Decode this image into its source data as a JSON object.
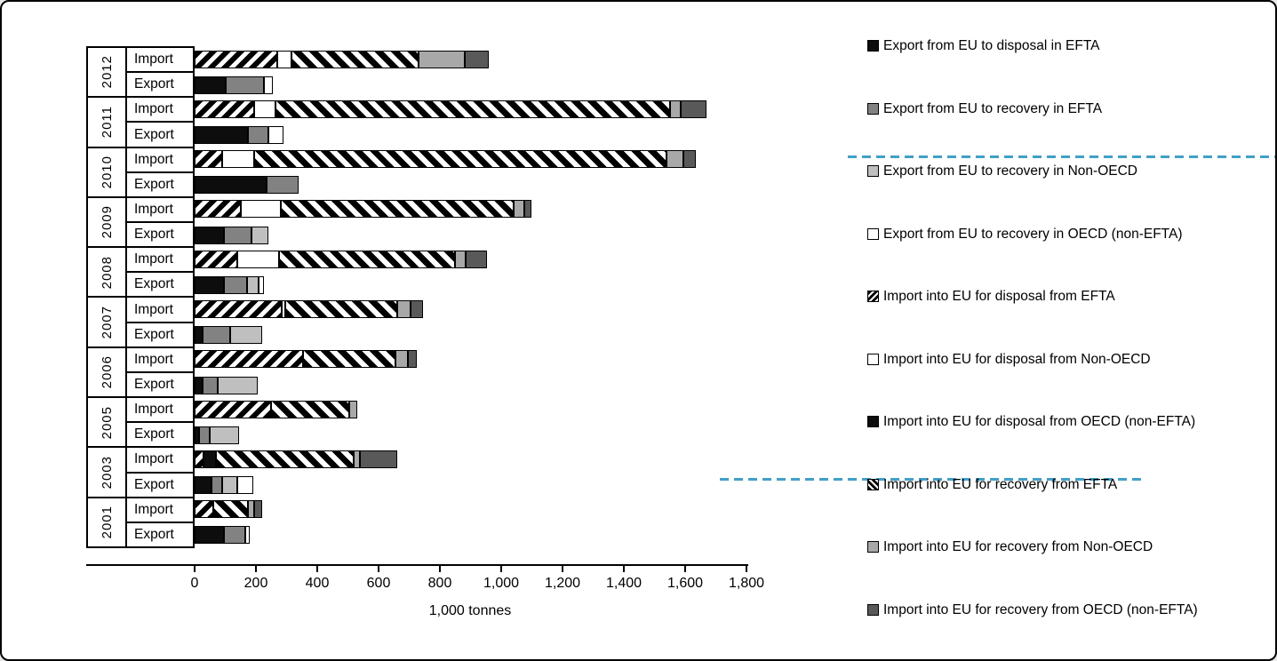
{
  "chart_data": {
    "type": "bar",
    "orientation": "horizontal",
    "title": "",
    "xlabel": "1,000 tonnes",
    "xlim": [
      0,
      1800
    ],
    "xticks": [
      "0",
      "200",
      "400",
      "600",
      "800",
      "1,000",
      "1,200",
      "1,400",
      "1,600",
      "1,800"
    ],
    "xtick_values": [
      0,
      200,
      400,
      600,
      800,
      1000,
      1200,
      1400,
      1600,
      1800
    ],
    "row_labels": [
      "Import",
      "Export"
    ],
    "import_series": [
      {
        "name": "Import into EU for disposal from EFTA",
        "style": "hatchf"
      },
      {
        "name": "Import into EU for disposal from Non-OECD",
        "style": "white"
      },
      {
        "name": "Import into EU for disposal from OECD (non-EFTA)",
        "style": "black"
      },
      {
        "name": "Import into EU for recovery from EFTA",
        "style": "hatchb"
      },
      {
        "name": "Import into EU for recovery from Non-OECD",
        "style": "graya6"
      },
      {
        "name": "Import into EU for recovery from OECD (non-EFTA)",
        "style": "gray59"
      }
    ],
    "export_series": [
      {
        "name": "Export from EU to disposal in EFTA",
        "style": "black"
      },
      {
        "name": "Export from EU to recovery in EFTA",
        "style": "gray80"
      },
      {
        "name": "Export from EU to recovery in Non-OECD",
        "style": "graybf"
      },
      {
        "name": "Export from EU to recovery in OECD (non-EFTA)",
        "style": "white"
      }
    ],
    "groups": [
      {
        "year": "2012",
        "import": [
          270,
          45,
          0,
          415,
          150,
          80
        ],
        "export": [
          100,
          125,
          0,
          30
        ]
      },
      {
        "year": "2011",
        "import": [
          195,
          70,
          0,
          1285,
          35,
          85
        ],
        "export": [
          175,
          65,
          0,
          50
        ]
      },
      {
        "year": "2010",
        "import": [
          90,
          105,
          0,
          1345,
          55,
          40
        ],
        "export": [
          235,
          105,
          0,
          0
        ]
      },
      {
        "year": "2009",
        "import": [
          150,
          130,
          0,
          760,
          35,
          25
        ],
        "export": [
          95,
          90,
          55,
          0
        ]
      },
      {
        "year": "2008",
        "import": [
          140,
          135,
          0,
          575,
          35,
          70
        ],
        "export": [
          95,
          75,
          40,
          15
        ]
      },
      {
        "year": "2007",
        "import": [
          285,
          10,
          0,
          365,
          45,
          40
        ],
        "export": [
          25,
          90,
          105,
          0
        ]
      },
      {
        "year": "2006",
        "import": [
          355,
          0,
          0,
          300,
          40,
          30
        ],
        "export": [
          25,
          50,
          130,
          0
        ]
      },
      {
        "year": "2005",
        "import": [
          250,
          0,
          0,
          255,
          25,
          0
        ],
        "export": [
          15,
          35,
          95,
          0
        ]
      },
      {
        "year": "2003",
        "import": [
          30,
          0,
          40,
          450,
          20,
          120
        ],
        "export": [
          55,
          35,
          50,
          50
        ]
      },
      {
        "year": "2001",
        "import": [
          60,
          0,
          0,
          115,
          20,
          25
        ],
        "export": [
          95,
          70,
          0,
          15
        ]
      }
    ]
  },
  "legend": {
    "items": [
      {
        "label": "Export from EU to disposal in EFTA",
        "style": "black"
      },
      {
        "label": "Export from EU to recovery in EFTA",
        "style": "gray80"
      },
      {
        "label": "Export from EU to recovery in Non-OECD",
        "style": "graybf"
      },
      {
        "label": "Export from EU to recovery in OECD (non-EFTA)",
        "style": "white"
      },
      {
        "label": "Import into EU for disposal from EFTA",
        "style": "hatchf"
      },
      {
        "label": "Import into EU for disposal from Non-OECD",
        "style": "white"
      },
      {
        "label": "Import into EU for disposal from OECD (non-EFTA)",
        "style": "black"
      },
      {
        "label": "Import into EU for recovery from EFTA",
        "style": "hatchb"
      },
      {
        "label": "Import into EU for recovery from Non-OECD",
        "style": "graya6"
      },
      {
        "label": "Import into EU for recovery from OECD (non-EFTA)",
        "style": "gray59"
      }
    ]
  },
  "colors": {
    "bar_black": "#0d0d0d",
    "export_recovery_efta_gray": "#828282",
    "export_recovery_nonoecd_gray": "#bfbfbf",
    "import_recovery_nonoecd_gray": "#a8a8a8",
    "import_recovery_oecd_gray": "#595959",
    "dashed_line_blue": "#41a0c8"
  },
  "annotations": {
    "dashed_lines": [
      {
        "between_legend_items": [
          2,
          3
        ],
        "color": "#41a0c8"
      },
      {
        "between_legend_items": [
          7,
          8
        ],
        "color": "#41a0c8"
      }
    ]
  }
}
